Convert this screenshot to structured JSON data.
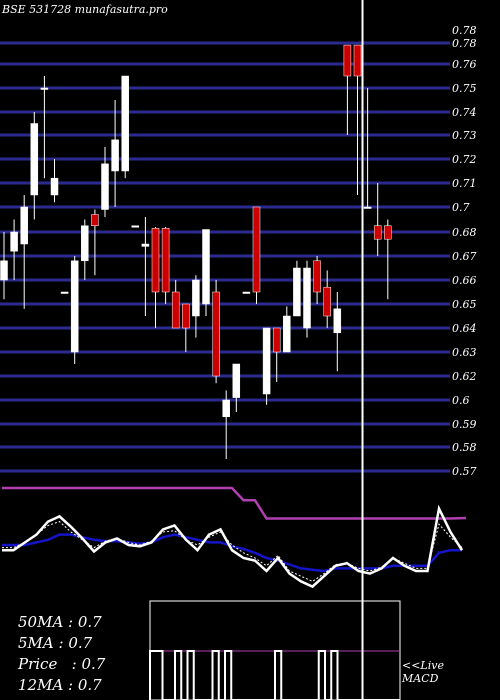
{
  "chart_data": {
    "type": "candlestick",
    "title": "BSE 531728 munafasutra.pro",
    "ylim": [
      0.56,
      0.79
    ],
    "y_ticks": [
      0.78,
      0.76,
      0.75,
      0.74,
      0.73,
      0.72,
      0.71,
      0.7,
      0.68,
      0.67,
      0.66,
      0.65,
      0.64,
      0.63,
      0.62,
      0.6,
      0.59,
      0.58,
      0.57
    ],
    "y_tick_labels": [
      "0.78",
      "0.76",
      "0.75",
      "0.74",
      "0.73",
      "0.72",
      "0.71",
      "0.7",
      "0.68",
      "0.67",
      "0.66",
      "0.65",
      "0.64",
      "0.63",
      "0.62",
      "0.6",
      "0.59",
      "0.58",
      "0.57"
    ],
    "overlap_tick_label": "0.78",
    "colors": {
      "background": "#000000",
      "grid": "#2b2b8f",
      "up": "#ffffff",
      "down": "#cc0000",
      "ma_fast": "#ffffff",
      "ma_slow": "#1414c8",
      "ma_long": "#b040b0",
      "cursor": "#ffffff"
    },
    "candles": [
      {
        "o": 0.66,
        "h": 0.68,
        "l": 0.652,
        "c": 0.668
      },
      {
        "o": 0.672,
        "h": 0.69,
        "l": 0.66,
        "c": 0.68
      },
      {
        "o": 0.675,
        "h": 0.705,
        "l": 0.648,
        "c": 0.7
      },
      {
        "o": 0.705,
        "h": 0.74,
        "l": 0.69,
        "c": 0.735
      },
      {
        "o": 0.75,
        "h": 0.755,
        "l": 0.712,
        "c": 0.75
      },
      {
        "o": 0.705,
        "h": 0.72,
        "l": 0.702,
        "c": 0.712
      },
      {
        "o": 0.655,
        "h": 0.655,
        "l": 0.655,
        "c": 0.655
      },
      {
        "o": 0.63,
        "h": 0.67,
        "l": 0.625,
        "c": 0.668
      },
      {
        "o": 0.668,
        "h": 0.69,
        "l": 0.66,
        "c": 0.685
      },
      {
        "o": 0.694,
        "h": 0.698,
        "l": 0.662,
        "c": 0.685
      },
      {
        "o": 0.698,
        "h": 0.725,
        "l": 0.692,
        "c": 0.718
      },
      {
        "o": 0.715,
        "h": 0.745,
        "l": 0.7,
        "c": 0.728
      },
      {
        "o": 0.715,
        "h": 0.755,
        "l": 0.712,
        "c": 0.755
      },
      {
        "o": 0.685,
        "h": 0.685,
        "l": 0.685,
        "c": 0.685
      },
      {
        "o": 0.674,
        "h": 0.692,
        "l": 0.645,
        "c": 0.675
      },
      {
        "o": 0.683,
        "h": 0.684,
        "l": 0.64,
        "c": 0.655
      },
      {
        "o": 0.683,
        "h": 0.684,
        "l": 0.65,
        "c": 0.655
      },
      {
        "o": 0.655,
        "h": 0.66,
        "l": 0.64,
        "c": 0.64
      },
      {
        "o": 0.65,
        "h": 0.65,
        "l": 0.63,
        "c": 0.64
      },
      {
        "o": 0.645,
        "h": 0.662,
        "l": 0.636,
        "c": 0.66
      },
      {
        "o": 0.65,
        "h": 0.682,
        "l": 0.645,
        "c": 0.682
      },
      {
        "o": 0.655,
        "h": 0.66,
        "l": 0.614,
        "c": 0.62
      },
      {
        "o": 0.593,
        "h": 0.608,
        "l": 0.575,
        "c": 0.6
      },
      {
        "o": 0.602,
        "h": 0.625,
        "l": 0.595,
        "c": 0.625
      },
      {
        "o": 0.655,
        "h": 0.655,
        "l": 0.655,
        "c": 0.655
      },
      {
        "o": 0.7,
        "h": 0.7,
        "l": 0.65,
        "c": 0.655
      },
      {
        "o": 0.605,
        "h": 0.64,
        "l": 0.598,
        "c": 0.64
      },
      {
        "o": 0.64,
        "h": 0.64,
        "l": 0.615,
        "c": 0.63
      },
      {
        "o": 0.63,
        "h": 0.649,
        "l": 0.63,
        "c": 0.645
      },
      {
        "o": 0.645,
        "h": 0.668,
        "l": 0.645,
        "c": 0.665
      },
      {
        "o": 0.64,
        "h": 0.668,
        "l": 0.636,
        "c": 0.665
      },
      {
        "o": 0.668,
        "h": 0.67,
        "l": 0.65,
        "c": 0.655
      },
      {
        "o": 0.657,
        "h": 0.664,
        "l": 0.64,
        "c": 0.645
      },
      {
        "o": 0.638,
        "h": 0.655,
        "l": 0.622,
        "c": 0.648
      },
      {
        "o": 0.778,
        "h": 0.778,
        "l": 0.73,
        "c": 0.755
      },
      {
        "o": 0.778,
        "h": 0.778,
        "l": 0.705,
        "c": 0.755
      },
      {
        "o": 0.7,
        "h": 0.75,
        "l": 0.7,
        "c": 0.7
      },
      {
        "o": 0.685,
        "h": 0.71,
        "l": 0.67,
        "c": 0.677
      },
      {
        "o": 0.685,
        "h": 0.69,
        "l": 0.652,
        "c": 0.677
      }
    ],
    "ma_long_series": [
      0.6,
      0.6,
      0.6,
      0.6,
      0.6,
      0.6,
      0.6,
      0.6,
      0.6,
      0.6,
      0.6,
      0.6,
      0.6,
      0.6,
      0.6,
      0.6,
      0.6,
      0.6,
      0.6,
      0.6,
      0.6,
      0.58,
      0.58,
      0.55,
      0.55,
      0.55,
      0.55,
      0.55,
      0.55,
      0.55,
      0.55,
      0.55,
      0.55,
      0.55,
      0.55,
      0.55,
      0.55,
      0.55,
      0.55,
      0.55
    ],
    "macd_fast": [
      0.46,
      0.46,
      0.52,
      0.58,
      0.68,
      0.72,
      0.64,
      0.55,
      0.45,
      0.52,
      0.55,
      0.5,
      0.49,
      0.52,
      0.62,
      0.65,
      0.54,
      0.46,
      0.58,
      0.62,
      0.46,
      0.4,
      0.38,
      0.3,
      0.4,
      0.28,
      0.22,
      0.18,
      0.26,
      0.34,
      0.36,
      0.3,
      0.28,
      0.32,
      0.4,
      0.34,
      0.3,
      0.3,
      0.78,
      0.6,
      0.46
    ],
    "macd_signal": [
      0.5,
      0.5,
      0.5,
      0.52,
      0.54,
      0.58,
      0.58,
      0.56,
      0.54,
      0.53,
      0.53,
      0.52,
      0.51,
      0.52,
      0.56,
      0.58,
      0.56,
      0.54,
      0.52,
      0.52,
      0.49,
      0.47,
      0.44,
      0.4,
      0.38,
      0.35,
      0.32,
      0.31,
      0.3,
      0.32,
      0.32,
      0.32,
      0.32,
      0.32,
      0.34,
      0.34,
      0.34,
      0.34,
      0.44,
      0.46,
      0.46
    ],
    "macd_dashed": [
      0.48,
      0.48,
      0.52,
      0.58,
      0.65,
      0.68,
      0.6,
      0.54,
      0.48,
      0.53,
      0.55,
      0.52,
      0.5,
      0.53,
      0.6,
      0.61,
      0.54,
      0.5,
      0.56,
      0.6,
      0.5,
      0.44,
      0.4,
      0.34,
      0.42,
      0.3,
      0.26,
      0.22,
      0.28,
      0.35,
      0.36,
      0.32,
      0.3,
      0.33,
      0.4,
      0.36,
      0.32,
      0.32,
      0.66,
      0.56,
      0.48
    ],
    "macd_histogram_pulse": [
      1,
      1,
      0,
      0,
      1,
      0,
      1,
      0,
      0,
      0,
      1,
      0,
      1,
      0,
      0,
      0,
      0,
      0,
      0,
      0,
      1,
      0,
      0,
      0,
      0,
      0,
      0,
      1,
      0,
      1,
      0,
      0,
      0,
      0,
      0,
      0,
      0,
      0,
      0,
      0
    ],
    "cursor_index": 35
  },
  "stats": {
    "ma50": "50MA : 0.7",
    "ma5": "5MA : 0.7",
    "price": "Price   : 0.7",
    "ma12": "12MA : 0.7"
  },
  "live_label": "<<Live",
  "macd_label": "MACD"
}
